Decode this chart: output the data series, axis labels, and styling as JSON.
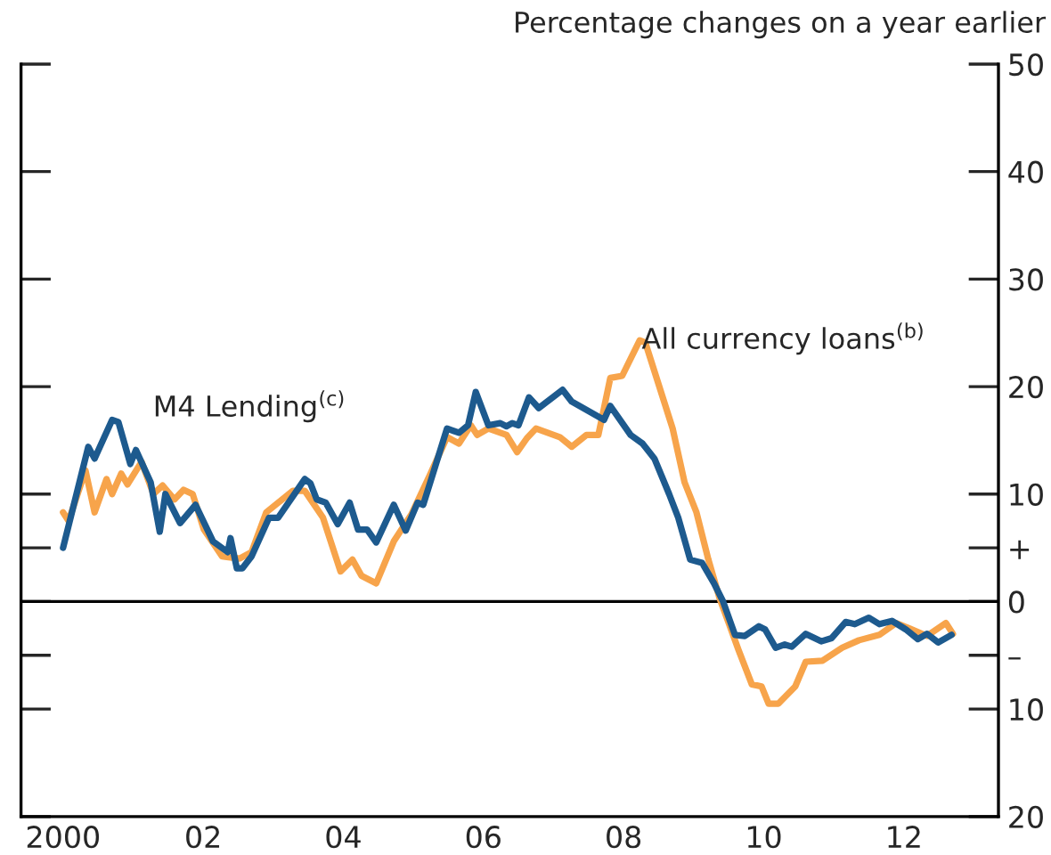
{
  "chart_data": {
    "type": "line",
    "ylabel": "Percentage changes on a year earlier",
    "xlim": [
      1999.4,
      2013.35
    ],
    "xticks": [
      {
        "value": 2000,
        "label": "2000"
      },
      {
        "value": 2002,
        "label": "02"
      },
      {
        "value": 2004,
        "label": "04"
      },
      {
        "value": 2006,
        "label": "06"
      },
      {
        "value": 2008,
        "label": "08"
      },
      {
        "value": 2010,
        "label": "10"
      },
      {
        "value": 2012,
        "label": "12"
      }
    ],
    "ylim": [
      -20,
      50
    ],
    "yticks": [
      {
        "value": -20,
        "label": "20"
      },
      {
        "value": -10,
        "label": "10"
      },
      {
        "value": -5,
        "label": "–"
      },
      0,
      {
        "value": 5,
        "label": "+"
      },
      10,
      20,
      30,
      40,
      50
    ],
    "ref_lines": [
      {
        "axis": "y",
        "value": 0,
        "color": "#000000"
      }
    ],
    "annotations": [
      "M4 Lending$^{(c)}$",
      "All currency loans$^{(b)}$"
    ],
    "grid": false,
    "series": [
      {
        "color": "#f7a44b",
        "x": [
          2000.0,
          2000.08,
          2000.32,
          2000.45,
          2000.62,
          2000.7,
          2000.83,
          2000.92,
          2001.12,
          2001.29,
          2001.42,
          2001.59,
          2001.72,
          2001.85,
          2002.01,
          2002.27,
          2002.52,
          2002.69,
          2002.9,
          2003.28,
          2003.45,
          2003.71,
          2003.96,
          2004.13,
          2004.26,
          2004.47,
          2004.72,
          2004.97,
          2005.23,
          2005.48,
          2005.65,
          2005.82,
          2005.91,
          2006.07,
          2006.33,
          2006.48,
          2006.62,
          2006.75,
          2007.09,
          2007.26,
          2007.47,
          2007.64,
          2007.81,
          2007.98,
          2008.23,
          2008.31,
          2008.7,
          2008.87,
          2009.04,
          2009.21,
          2009.37,
          2009.5,
          2009.64,
          2009.83,
          2009.97,
          2010.07,
          2010.21,
          2010.45,
          2010.6,
          2010.84,
          2011.12,
          2011.36,
          2011.65,
          2011.89,
          2012.08,
          2012.33,
          2012.6,
          2012.7
        ],
        "values": [
          8.3,
          7.5,
          12.2,
          8.3,
          11.4,
          10.0,
          11.9,
          10.9,
          13.0,
          10.0,
          10.8,
          9.5,
          10.4,
          10.0,
          6.7,
          4.2,
          4.0,
          4.6,
          8.3,
          10.3,
          10.3,
          7.8,
          2.8,
          3.9,
          2.4,
          1.7,
          5.6,
          8.1,
          11.7,
          15.3,
          14.7,
          16.4,
          15.5,
          16.1,
          15.5,
          13.9,
          15.2,
          16.1,
          15.3,
          14.4,
          15.5,
          15.5,
          20.8,
          21.0,
          24.3,
          24.1,
          16.1,
          11.1,
          8.3,
          3.9,
          0.3,
          -2.0,
          -4.5,
          -7.7,
          -7.9,
          -9.5,
          -9.5,
          -7.9,
          -5.6,
          -5.5,
          -4.3,
          -3.6,
          -3.1,
          -2.0,
          -2.5,
          -3.2,
          -2.0,
          -3.0
        ]
      },
      {
        "color": "#1d5a8e",
        "x": [
          2000.0,
          2000.36,
          2000.45,
          2000.7,
          2000.79,
          2000.96,
          2001.04,
          2001.25,
          2001.38,
          2001.46,
          2001.67,
          2001.89,
          2002.14,
          2002.35,
          2002.39,
          2002.48,
          2002.56,
          2002.69,
          2002.94,
          2003.07,
          2003.45,
          2003.53,
          2003.62,
          2003.75,
          2003.92,
          2004.09,
          2004.21,
          2004.34,
          2004.47,
          2004.72,
          2004.89,
          2005.06,
          2005.14,
          2005.27,
          2005.48,
          2005.65,
          2005.78,
          2005.89,
          2006.07,
          2006.24,
          2006.33,
          2006.41,
          2006.5,
          2006.65,
          2006.79,
          2007.13,
          2007.26,
          2007.72,
          2007.81,
          2008.1,
          2008.27,
          2008.44,
          2008.65,
          2008.78,
          2008.95,
          2009.12,
          2009.29,
          2009.42,
          2009.59,
          2009.73,
          2009.93,
          2010.02,
          2010.17,
          2010.3,
          2010.4,
          2010.6,
          2010.82,
          2010.97,
          2011.17,
          2011.3,
          2011.5,
          2011.65,
          2011.83,
          2012.03,
          2012.2,
          2012.33,
          2012.49,
          2012.68
        ],
        "values": [
          5.0,
          14.4,
          13.3,
          16.9,
          16.7,
          12.8,
          14.1,
          11.1,
          6.5,
          10.0,
          7.3,
          9.0,
          5.6,
          4.6,
          5.9,
          3.1,
          3.1,
          4.2,
          7.8,
          7.8,
          11.4,
          11.0,
          9.5,
          9.2,
          7.2,
          9.2,
          6.7,
          6.7,
          5.5,
          9.0,
          6.6,
          9.2,
          9.0,
          11.7,
          16.1,
          15.7,
          16.4,
          19.5,
          16.4,
          16.6,
          16.3,
          16.6,
          16.4,
          19.0,
          18.0,
          19.7,
          18.6,
          16.9,
          18.2,
          15.5,
          14.7,
          13.3,
          10.0,
          7.8,
          3.9,
          3.6,
          1.7,
          0.0,
          -3.1,
          -3.2,
          -2.3,
          -2.6,
          -4.3,
          -4.0,
          -4.2,
          -3.0,
          -3.7,
          -3.4,
          -1.9,
          -2.1,
          -1.5,
          -2.1,
          -1.8,
          -2.6,
          -3.5,
          -3.0,
          -3.8,
          -3.1
        ]
      }
    ]
  }
}
